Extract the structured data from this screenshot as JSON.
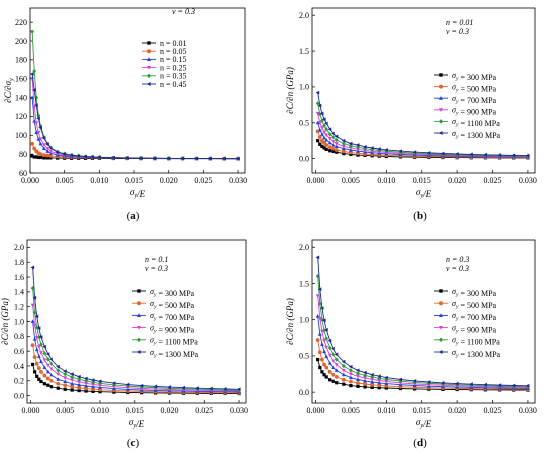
{
  "chart_data": [
    {
      "panel_label": "(a)",
      "type": "line",
      "xlabel": "σy/E",
      "ylabel": "∂C/∂σy",
      "xlim": [
        0,
        0.031
      ],
      "ylim": [
        60,
        235
      ],
      "xticks": [
        "0.000",
        "0.005",
        "0.010",
        "0.015",
        "0.020",
        "0.025",
        "0.030"
      ],
      "yticks": [
        "60",
        "80",
        "100",
        "120",
        "140",
        "160",
        "180",
        "200",
        "220"
      ],
      "annotations": [
        "ν = 0.3"
      ],
      "legend_position": "top-right",
      "x": [
        0.0003,
        0.0006,
        0.0009,
        0.0012,
        0.0015,
        0.002,
        0.0025,
        0.003,
        0.004,
        0.005,
        0.006,
        0.007,
        0.008,
        0.009,
        0.01,
        0.012,
        0.014,
        0.016,
        0.018,
        0.02,
        0.022,
        0.024,
        0.026,
        0.028,
        0.03
      ],
      "series": [
        {
          "name": "n = 0.01",
          "color": "#000000",
          "marker": "square",
          "values": [
            78,
            77,
            77,
            76.5,
            76.5,
            76,
            76,
            76,
            75.8,
            75.7,
            75.6,
            75.6,
            75.5,
            75.5,
            75.5,
            75.4,
            75.4,
            75.3,
            75.3,
            75.2,
            75.2,
            75.2,
            75.2,
            75.1,
            75.1
          ]
        },
        {
          "name": "n = 0.05",
          "color": "#e0662a",
          "marker": "circle",
          "values": [
            91,
            86,
            83,
            81,
            80,
            79,
            78.5,
            78,
            77.5,
            77,
            76.8,
            76.6,
            76.4,
            76.2,
            76,
            75.8,
            75.7,
            75.6,
            75.5,
            75.4,
            75.4,
            75.3,
            75.3,
            75.2,
            75.2
          ]
        },
        {
          "name": "n = 0.15",
          "color": "#1f3fd6",
          "marker": "triangle-up",
          "values": [
            140,
            115,
            103,
            96,
            91,
            86,
            83,
            81,
            79,
            78,
            77.5,
            77,
            76.8,
            76.5,
            76.3,
            76,
            75.9,
            75.7,
            75.6,
            75.5,
            75.4,
            75.4,
            75.3,
            75.3,
            75.2
          ]
        },
        {
          "name": "n = 0.25",
          "color": "#d93ee0",
          "marker": "triangle-down",
          "values": [
            160,
            130,
            113,
            103,
            96,
            90,
            86,
            83,
            80.5,
            79,
            78,
            77.5,
            77,
            76.7,
            76.5,
            76.1,
            75.9,
            75.8,
            75.6,
            75.5,
            75.5,
            75.4,
            75.3,
            75.3,
            75.2
          ]
        },
        {
          "name": "n = 0.35",
          "color": "#2f9a3a",
          "marker": "diamond",
          "values": [
            210,
            168,
            140,
            121,
            110,
            98,
            91,
            87,
            82.5,
            80.5,
            79,
            78.3,
            77.6,
            77.2,
            76.8,
            76.3,
            76,
            75.9,
            75.7,
            75.6,
            75.5,
            75.4,
            75.4,
            75.3,
            75.3
          ]
        },
        {
          "name": "n = 0.45",
          "color": "#1b2a8f",
          "marker": "triangle-left",
          "values": [
            165,
            148,
            132,
            118,
            108,
            97,
            90.5,
            86.5,
            82,
            80,
            78.8,
            78,
            77.4,
            77,
            76.7,
            76.2,
            76,
            75.8,
            75.6,
            75.5,
            75.5,
            75.4,
            75.3,
            75.3,
            75.2
          ]
        }
      ]
    },
    {
      "panel_label": "(b)",
      "type": "line",
      "xlabel": "σy/E",
      "ylabel": "∂C/∂n (GPa)",
      "xlim": [
        -0.0005,
        0.031
      ],
      "ylim": [
        -0.2,
        2.1
      ],
      "xticks": [
        "0.000",
        "0.005",
        "0.010",
        "0.015",
        "0.020",
        "0.025",
        "0.030"
      ],
      "yticks": [
        "0.0",
        "0.5",
        "1.0",
        "1.5",
        "2.0"
      ],
      "annotations": [
        "n = 0.01",
        "ν = 0.3"
      ],
      "legend_position": "top-right",
      "x": [
        0.0003,
        0.0006,
        0.0009,
        0.0012,
        0.0015,
        0.002,
        0.0025,
        0.003,
        0.004,
        0.005,
        0.006,
        0.007,
        0.008,
        0.009,
        0.01,
        0.012,
        0.014,
        0.016,
        0.018,
        0.02,
        0.022,
        0.024,
        0.026,
        0.028,
        0.03
      ],
      "series": [
        {
          "name": "σy = 300 MPa",
          "color": "#000000",
          "marker": "square",
          "values": [
            0.25,
            0.2,
            0.17,
            0.15,
            0.13,
            0.11,
            0.1,
            0.09,
            0.07,
            0.06,
            0.05,
            0.045,
            0.04,
            0.035,
            0.03,
            0.025,
            0.02,
            0.018,
            0.016,
            0.014,
            0.013,
            0.012,
            0.011,
            0.01,
            0.01
          ]
        },
        {
          "name": "σy = 500 MPa",
          "color": "#e0662a",
          "marker": "circle",
          "values": [
            0.38,
            0.3,
            0.25,
            0.22,
            0.19,
            0.16,
            0.14,
            0.12,
            0.1,
            0.085,
            0.075,
            0.065,
            0.058,
            0.052,
            0.047,
            0.04,
            0.034,
            0.03,
            0.026,
            0.023,
            0.021,
            0.019,
            0.018,
            0.017,
            0.016
          ]
        },
        {
          "name": "σy = 700 MPa",
          "color": "#1f3fd6",
          "marker": "triangle-up",
          "values": [
            0.5,
            0.4,
            0.34,
            0.29,
            0.26,
            0.22,
            0.19,
            0.17,
            0.14,
            0.12,
            0.105,
            0.093,
            0.083,
            0.075,
            0.068,
            0.058,
            0.05,
            0.044,
            0.039,
            0.035,
            0.032,
            0.029,
            0.027,
            0.025,
            0.024
          ]
        },
        {
          "name": "σy = 900 MPa",
          "color": "#d93ee0",
          "marker": "triangle-down",
          "values": [
            0.63,
            0.5,
            0.43,
            0.37,
            0.33,
            0.28,
            0.24,
            0.21,
            0.17,
            0.15,
            0.13,
            0.115,
            0.103,
            0.094,
            0.086,
            0.073,
            0.063,
            0.056,
            0.05,
            0.045,
            0.041,
            0.037,
            0.034,
            0.032,
            0.03
          ]
        },
        {
          "name": "σy = 1100 MPa",
          "color": "#2f9a3a",
          "marker": "diamond",
          "values": [
            0.77,
            0.62,
            0.53,
            0.46,
            0.41,
            0.34,
            0.3,
            0.26,
            0.21,
            0.18,
            0.16,
            0.14,
            0.125,
            0.113,
            0.104,
            0.089,
            0.077,
            0.068,
            0.061,
            0.055,
            0.05,
            0.046,
            0.042,
            0.039,
            0.037
          ]
        },
        {
          "name": "σy = 1300 MPa",
          "color": "#1b2a8f",
          "marker": "triangle-left",
          "values": [
            0.92,
            0.74,
            0.63,
            0.55,
            0.49,
            0.41,
            0.35,
            0.31,
            0.25,
            0.21,
            0.19,
            0.165,
            0.148,
            0.134,
            0.122,
            0.105,
            0.091,
            0.081,
            0.072,
            0.065,
            0.059,
            0.054,
            0.05,
            0.046,
            0.043
          ]
        }
      ]
    },
    {
      "panel_label": "(c)",
      "type": "line",
      "xlabel": "σy/E",
      "ylabel": "∂C/∂n (GPa)",
      "xlim": [
        -0.0005,
        0.031
      ],
      "ylim": [
        -0.1,
        2.1
      ],
      "xticks": [
        "0.000",
        "0.005",
        "0.010",
        "0.015",
        "0.020",
        "0.025",
        "0.030"
      ],
      "yticks": [
        "0.0",
        "0.2",
        "0.4",
        "0.6",
        "0.8",
        "1.0",
        "1.2",
        "1.4",
        "1.6",
        "1.8",
        "2.0"
      ],
      "annotations": [
        "n = 0.1",
        "ν = 0.3"
      ],
      "legend_position": "top-right",
      "x": [
        0.0003,
        0.0006,
        0.0009,
        0.0012,
        0.0015,
        0.002,
        0.0025,
        0.003,
        0.004,
        0.005,
        0.006,
        0.007,
        0.008,
        0.009,
        0.01,
        0.012,
        0.014,
        0.016,
        0.018,
        0.02,
        0.022,
        0.024,
        0.026,
        0.028,
        0.03
      ],
      "series": [
        {
          "name": "σy = 300 MPa",
          "color": "#000000",
          "marker": "square",
          "values": [
            0.42,
            0.32,
            0.26,
            0.22,
            0.19,
            0.16,
            0.14,
            0.12,
            0.1,
            0.085,
            0.075,
            0.068,
            0.062,
            0.057,
            0.053,
            0.047,
            0.042,
            0.039,
            0.036,
            0.034,
            0.032,
            0.031,
            0.03,
            0.029,
            0.028
          ]
        },
        {
          "name": "σy = 500 MPa",
          "color": "#e0662a",
          "marker": "circle",
          "values": [
            0.68,
            0.52,
            0.43,
            0.37,
            0.32,
            0.27,
            0.23,
            0.2,
            0.16,
            0.14,
            0.12,
            0.105,
            0.095,
            0.087,
            0.08,
            0.07,
            0.062,
            0.057,
            0.052,
            0.048,
            0.045,
            0.043,
            0.041,
            0.039,
            0.037
          ]
        },
        {
          "name": "σy = 700 MPa",
          "color": "#1f3fd6",
          "marker": "triangle-up",
          "values": [
            1.0,
            0.76,
            0.62,
            0.53,
            0.46,
            0.38,
            0.32,
            0.28,
            0.22,
            0.19,
            0.16,
            0.145,
            0.13,
            0.12,
            0.11,
            0.095,
            0.084,
            0.076,
            0.07,
            0.065,
            0.061,
            0.057,
            0.054,
            0.052,
            0.05
          ]
        },
        {
          "name": "σy = 900 MPa",
          "color": "#d93ee0",
          "marker": "triangle-down",
          "values": [
            1.22,
            0.95,
            0.78,
            0.66,
            0.58,
            0.48,
            0.41,
            0.36,
            0.29,
            0.24,
            0.21,
            0.185,
            0.166,
            0.151,
            0.139,
            0.12,
            0.106,
            0.096,
            0.088,
            0.082,
            0.077,
            0.072,
            0.068,
            0.065,
            0.062
          ]
        },
        {
          "name": "σy = 1100 MPa",
          "color": "#2f9a3a",
          "marker": "diamond",
          "values": [
            1.45,
            1.12,
            0.92,
            0.79,
            0.69,
            0.57,
            0.49,
            0.43,
            0.34,
            0.29,
            0.25,
            0.22,
            0.2,
            0.18,
            0.166,
            0.144,
            0.128,
            0.116,
            0.106,
            0.098,
            0.092,
            0.086,
            0.081,
            0.077,
            0.073
          ]
        },
        {
          "name": "σy = 1300 MPa",
          "color": "#1b2a8f",
          "marker": "triangle-left",
          "values": [
            1.73,
            1.32,
            1.07,
            0.91,
            0.79,
            0.66,
            0.56,
            0.49,
            0.39,
            0.33,
            0.29,
            0.255,
            0.23,
            0.21,
            0.193,
            0.168,
            0.149,
            0.135,
            0.124,
            0.115,
            0.107,
            0.1,
            0.095,
            0.09,
            0.085
          ]
        }
      ]
    },
    {
      "panel_label": "(d)",
      "type": "line",
      "xlabel": "σy/E",
      "ylabel": "∂C/∂n (GPa)",
      "xlim": [
        -0.0005,
        0.031
      ],
      "ylim": [
        -0.15,
        2.1
      ],
      "xticks": [
        "0.000",
        "0.005",
        "0.010",
        "0.015",
        "0.020",
        "0.025",
        "0.030"
      ],
      "yticks": [
        "0.0",
        "0.5",
        "1.0",
        "1.5",
        "2.0"
      ],
      "annotations": [
        "n = 0.3",
        "ν = 0.3"
      ],
      "legend_position": "top-right",
      "x": [
        0.0003,
        0.0006,
        0.0009,
        0.0012,
        0.0015,
        0.002,
        0.0025,
        0.003,
        0.004,
        0.005,
        0.006,
        0.007,
        0.008,
        0.009,
        0.01,
        0.012,
        0.014,
        0.016,
        0.018,
        0.02,
        0.022,
        0.024,
        0.026,
        0.028,
        0.03
      ],
      "series": [
        {
          "name": "σy = 300 MPa",
          "color": "#000000",
          "marker": "square",
          "values": [
            0.45,
            0.34,
            0.28,
            0.24,
            0.21,
            0.17,
            0.15,
            0.13,
            0.11,
            0.09,
            0.08,
            0.072,
            0.066,
            0.061,
            0.057,
            0.05,
            0.045,
            0.041,
            0.038,
            0.036,
            0.034,
            0.032,
            0.031,
            0.03,
            0.029
          ]
        },
        {
          "name": "σy = 500 MPa",
          "color": "#e0662a",
          "marker": "circle",
          "values": [
            0.72,
            0.55,
            0.45,
            0.38,
            0.34,
            0.28,
            0.24,
            0.21,
            0.17,
            0.145,
            0.125,
            0.112,
            0.101,
            0.093,
            0.086,
            0.075,
            0.067,
            0.061,
            0.056,
            0.052,
            0.049,
            0.046,
            0.044,
            0.042,
            0.04
          ]
        },
        {
          "name": "σy = 700 MPa",
          "color": "#1f3fd6",
          "marker": "triangle-up",
          "values": [
            1.05,
            0.8,
            0.66,
            0.56,
            0.49,
            0.4,
            0.34,
            0.3,
            0.24,
            0.2,
            0.175,
            0.155,
            0.14,
            0.128,
            0.118,
            0.102,
            0.091,
            0.082,
            0.075,
            0.07,
            0.065,
            0.061,
            0.058,
            0.055,
            0.053
          ]
        },
        {
          "name": "σy = 900 MPa",
          "color": "#d93ee0",
          "marker": "triangle-down",
          "values": [
            1.33,
            1.02,
            0.84,
            0.71,
            0.62,
            0.51,
            0.43,
            0.38,
            0.3,
            0.25,
            0.22,
            0.195,
            0.176,
            0.16,
            0.148,
            0.128,
            0.113,
            0.102,
            0.094,
            0.087,
            0.081,
            0.076,
            0.072,
            0.068,
            0.065
          ]
        },
        {
          "name": "σy = 1100 MPa",
          "color": "#2f9a3a",
          "marker": "diamond",
          "values": [
            1.6,
            1.22,
            1.0,
            0.85,
            0.74,
            0.61,
            0.52,
            0.45,
            0.36,
            0.3,
            0.26,
            0.23,
            0.21,
            0.19,
            0.175,
            0.152,
            0.135,
            0.122,
            0.112,
            0.103,
            0.096,
            0.09,
            0.085,
            0.081,
            0.077
          ]
        },
        {
          "name": "σy = 1300 MPa",
          "color": "#1b2a8f",
          "marker": "triangle-left",
          "values": [
            1.86,
            1.42,
            1.16,
            0.99,
            0.86,
            0.71,
            0.6,
            0.52,
            0.42,
            0.35,
            0.3,
            0.27,
            0.24,
            0.22,
            0.2,
            0.175,
            0.155,
            0.14,
            0.128,
            0.118,
            0.11,
            0.103,
            0.097,
            0.092,
            0.088
          ]
        }
      ]
    }
  ]
}
